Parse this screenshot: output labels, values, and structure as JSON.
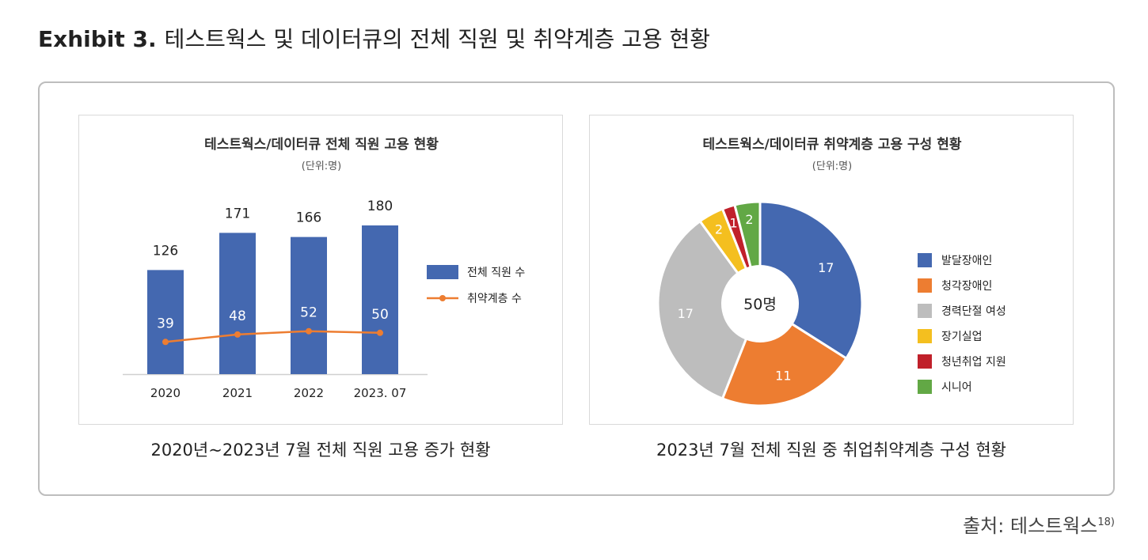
{
  "header": {
    "exhibit": "Exhibit 3.",
    "title": "테스트웍스 및 데이터큐의 전체 직원 및 취약계층 고용 현황"
  },
  "source": {
    "label": "출처: 테스트웍스",
    "footnote": "18)"
  },
  "chart_data": [
    {
      "type": "bar",
      "title": "테스트웍스/데이터큐 전체 직원 고용 현황",
      "subtitle": "(단위:명)",
      "caption": "2020년~2023년 7월 전체 직원 고용 증가 현황",
      "categories": [
        "2020",
        "2021",
        "2022",
        "2023. 07"
      ],
      "series": [
        {
          "name": "전체 직원 수",
          "kind": "bar",
          "color": "#4468b0",
          "values": [
            126,
            171,
            166,
            180
          ]
        },
        {
          "name": "취약계층 수",
          "kind": "line",
          "color": "#ed7d31",
          "values": [
            39,
            48,
            52,
            50
          ]
        }
      ],
      "ylim": [
        0,
        180
      ],
      "legend_position": "right"
    },
    {
      "type": "pie",
      "title": "테스트웍스/데이터큐 취약계층 고용 구성 현황",
      "subtitle": "(단위:명)",
      "caption": "2023년 7월 전체 직원 중 취업취약계층 구성 현황",
      "center_label": "50명",
      "slices": [
        {
          "label": "발달장애인",
          "value": 17,
          "color": "#4468b0"
        },
        {
          "label": "청각장애인",
          "value": 11,
          "color": "#ed7d31"
        },
        {
          "label": "경력단절 여성",
          "value": 17,
          "color": "#bdbdbd"
        },
        {
          "label": "장기실업",
          "value": 2,
          "color": "#f4bf1f"
        },
        {
          "label": "청년취업 지원",
          "value": 1,
          "color": "#c0202a"
        },
        {
          "label": "시니어",
          "value": 2,
          "color": "#62a845"
        }
      ],
      "legend_position": "right"
    }
  ]
}
